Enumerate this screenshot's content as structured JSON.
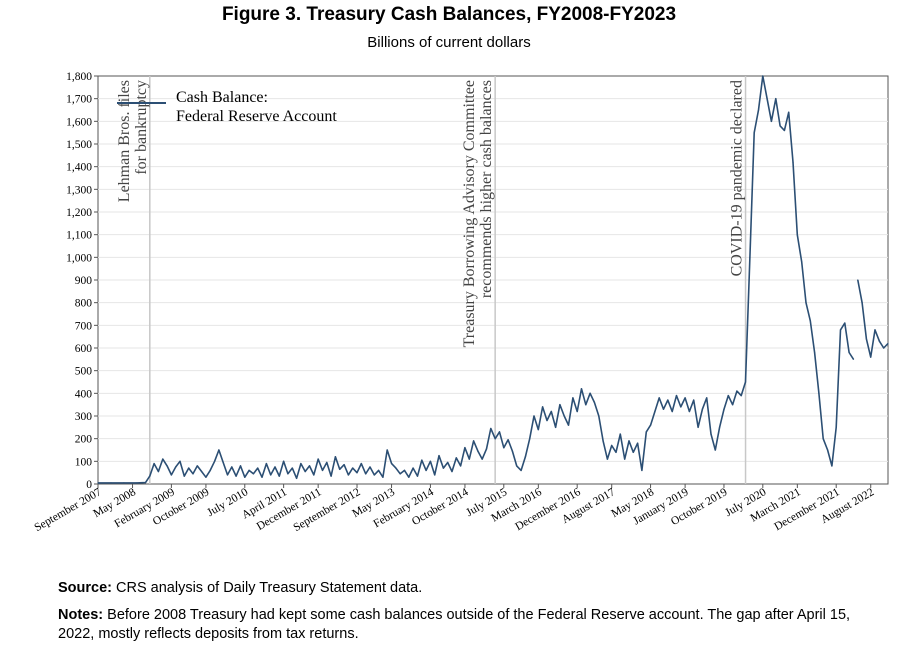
{
  "figure": {
    "title": "Figure 3. Treasury Cash Balances, FY2008-FY2023",
    "subtitle": "Billions of current dollars"
  },
  "footer": {
    "source_label": "Source:",
    "source_text": "CRS analysis of Daily Treasury Statement data.",
    "notes_label": "Notes:",
    "notes_text": "Before 2008 Treasury had kept some cash balances outside of the Federal Reserve account. The gap after April 15, 2022, mostly reflects deposits from tax returns."
  },
  "colors": {
    "series": "#2c4f74",
    "annotation_line": "#c8c8c8",
    "grid": "#e6e6e6",
    "axis": "#555555"
  },
  "chart_data": {
    "type": "line",
    "xlabel": "",
    "ylabel": "",
    "ylim": [
      0,
      1800
    ],
    "xlim": [
      "2007-09",
      "2022-12"
    ],
    "grid": "horizontal",
    "legend": "top-left",
    "y_ticks": [
      "0",
      "100",
      "200",
      "300",
      "400",
      "500",
      "600",
      "700",
      "800",
      "900",
      "1,000",
      "1,100",
      "1,200",
      "1,300",
      "1,400",
      "1,500",
      "1,600",
      "1,700",
      "1,800"
    ],
    "x_ticks": [
      {
        "date": "2007-09",
        "label": "September 2007"
      },
      {
        "date": "2008-05",
        "label": "May 2008"
      },
      {
        "date": "2009-02",
        "label": "February 2009"
      },
      {
        "date": "2009-10",
        "label": "October 2009"
      },
      {
        "date": "2010-07",
        "label": "July 2010"
      },
      {
        "date": "2011-04",
        "label": "April 2011"
      },
      {
        "date": "2011-12",
        "label": "December 2011"
      },
      {
        "date": "2012-09",
        "label": "September 2012"
      },
      {
        "date": "2013-05",
        "label": "May 2013"
      },
      {
        "date": "2014-02",
        "label": "February 2014"
      },
      {
        "date": "2014-10",
        "label": "October 2014"
      },
      {
        "date": "2015-07",
        "label": "July 2015"
      },
      {
        "date": "2016-03",
        "label": "March 2016"
      },
      {
        "date": "2016-12",
        "label": "December 2016"
      },
      {
        "date": "2017-08",
        "label": "August 2017"
      },
      {
        "date": "2018-05",
        "label": "May 2018"
      },
      {
        "date": "2019-01",
        "label": "January 2019"
      },
      {
        "date": "2019-10",
        "label": "October 2019"
      },
      {
        "date": "2020-07",
        "label": "July 2020"
      },
      {
        "date": "2021-03",
        "label": "March 2021"
      },
      {
        "date": "2021-12",
        "label": "December 2021"
      },
      {
        "date": "2022-08",
        "label": "August 2022"
      }
    ],
    "annotations": [
      {
        "date": "2008-09",
        "lines": [
          "Lehman Bros. files",
          "for bankruptcy"
        ]
      },
      {
        "date": "2015-05",
        "lines": [
          "Treasury Borrowing Advisory Committee",
          "recommends higher cash balances"
        ]
      },
      {
        "date": "2020-03",
        "lines": [
          "COVID-19 pandemic declared"
        ]
      }
    ],
    "series": [
      {
        "name": "Cash Balance:\nFederal Reserve Account",
        "segments": [
          [
            [
              "2007-09",
              5
            ],
            [
              "2007-12",
              5
            ],
            [
              "2008-03",
              5
            ],
            [
              "2008-06",
              5
            ],
            [
              "2008-08",
              6
            ],
            [
              "2008-09",
              35
            ],
            [
              "2008-10",
              90
            ],
            [
              "2008-11",
              55
            ],
            [
              "2008-12",
              110
            ],
            [
              "2009-01",
              80
            ],
            [
              "2009-02",
              40
            ],
            [
              "2009-03",
              75
            ],
            [
              "2009-04",
              100
            ],
            [
              "2009-05",
              35
            ],
            [
              "2009-06",
              70
            ],
            [
              "2009-07",
              45
            ],
            [
              "2009-08",
              80
            ],
            [
              "2009-09",
              55
            ],
            [
              "2009-10",
              30
            ],
            [
              "2009-11",
              60
            ],
            [
              "2009-12",
              100
            ],
            [
              "2010-01",
              150
            ],
            [
              "2010-02",
              95
            ],
            [
              "2010-03",
              40
            ],
            [
              "2010-04",
              75
            ],
            [
              "2010-05",
              35
            ],
            [
              "2010-06",
              80
            ],
            [
              "2010-07",
              30
            ],
            [
              "2010-08",
              60
            ],
            [
              "2010-09",
              45
            ],
            [
              "2010-10",
              70
            ],
            [
              "2010-11",
              30
            ],
            [
              "2010-12",
              90
            ],
            [
              "2011-01",
              40
            ],
            [
              "2011-02",
              75
            ],
            [
              "2011-03",
              35
            ],
            [
              "2011-04",
              100
            ],
            [
              "2011-05",
              45
            ],
            [
              "2011-06",
              70
            ],
            [
              "2011-07",
              25
            ],
            [
              "2011-08",
              90
            ],
            [
              "2011-09",
              55
            ],
            [
              "2011-10",
              80
            ],
            [
              "2011-11",
              40
            ],
            [
              "2011-12",
              110
            ],
            [
              "2012-01",
              60
            ],
            [
              "2012-02",
              95
            ],
            [
              "2012-03",
              35
            ],
            [
              "2012-04",
              120
            ],
            [
              "2012-05",
              65
            ],
            [
              "2012-06",
              85
            ],
            [
              "2012-07",
              40
            ],
            [
              "2012-08",
              70
            ],
            [
              "2012-09",
              50
            ],
            [
              "2012-10",
              90
            ],
            [
              "2012-11",
              45
            ],
            [
              "2012-12",
              75
            ],
            [
              "2013-01",
              40
            ],
            [
              "2013-02",
              60
            ],
            [
              "2013-03",
              30
            ],
            [
              "2013-04",
              150
            ],
            [
              "2013-05",
              90
            ],
            [
              "2013-06",
              70
            ],
            [
              "2013-07",
              45
            ],
            [
              "2013-08",
              60
            ],
            [
              "2013-09",
              30
            ],
            [
              "2013-10",
              70
            ],
            [
              "2013-11",
              35
            ],
            [
              "2013-12",
              105
            ],
            [
              "2014-01",
              60
            ],
            [
              "2014-02",
              100
            ],
            [
              "2014-03",
              40
            ],
            [
              "2014-04",
              125
            ],
            [
              "2014-05",
              70
            ],
            [
              "2014-06",
              95
            ],
            [
              "2014-07",
              55
            ],
            [
              "2014-08",
              115
            ],
            [
              "2014-09",
              80
            ],
            [
              "2014-10",
              160
            ],
            [
              "2014-11",
              110
            ],
            [
              "2014-12",
              190
            ],
            [
              "2015-01",
              145
            ],
            [
              "2015-02",
              110
            ],
            [
              "2015-03",
              155
            ],
            [
              "2015-04",
              245
            ],
            [
              "2015-05",
              200
            ],
            [
              "2015-06",
              230
            ],
            [
              "2015-07",
              160
            ],
            [
              "2015-08",
              195
            ],
            [
              "2015-09",
              145
            ],
            [
              "2015-10",
              80
            ],
            [
              "2015-11",
              60
            ],
            [
              "2015-12",
              120
            ],
            [
              "2016-01",
              200
            ],
            [
              "2016-02",
              300
            ],
            [
              "2016-03",
              240
            ],
            [
              "2016-04",
              340
            ],
            [
              "2016-05",
              280
            ],
            [
              "2016-06",
              320
            ],
            [
              "2016-07",
              250
            ],
            [
              "2016-08",
              350
            ],
            [
              "2016-09",
              300
            ],
            [
              "2016-10",
              260
            ],
            [
              "2016-11",
              380
            ],
            [
              "2016-12",
              320
            ],
            [
              "2017-01",
              420
            ],
            [
              "2017-02",
              350
            ],
            [
              "2017-03",
              400
            ],
            [
              "2017-04",
              360
            ],
            [
              "2017-05",
              300
            ],
            [
              "2017-06",
              190
            ],
            [
              "2017-07",
              110
            ],
            [
              "2017-08",
              170
            ],
            [
              "2017-09",
              140
            ],
            [
              "2017-10",
              220
            ],
            [
              "2017-11",
              110
            ],
            [
              "2017-12",
              190
            ],
            [
              "2018-01",
              140
            ],
            [
              "2018-02",
              180
            ],
            [
              "2018-03",
              60
            ],
            [
              "2018-04",
              230
            ],
            [
              "2018-05",
              260
            ],
            [
              "2018-06",
              320
            ],
            [
              "2018-07",
              380
            ],
            [
              "2018-08",
              330
            ],
            [
              "2018-09",
              370
            ],
            [
              "2018-10",
              320
            ],
            [
              "2018-11",
              390
            ],
            [
              "2018-12",
              340
            ],
            [
              "2019-01",
              380
            ],
            [
              "2019-02",
              320
            ],
            [
              "2019-03",
              370
            ],
            [
              "2019-04",
              250
            ],
            [
              "2019-05",
              330
            ],
            [
              "2019-06",
              380
            ],
            [
              "2019-07",
              220
            ],
            [
              "2019-08",
              150
            ],
            [
              "2019-09",
              250
            ],
            [
              "2019-10",
              330
            ],
            [
              "2019-11",
              390
            ],
            [
              "2019-12",
              350
            ],
            [
              "2020-01",
              410
            ],
            [
              "2020-02",
              390
            ],
            [
              "2020-03",
              450
            ],
            [
              "2020-04",
              1000
            ],
            [
              "2020-05",
              1550
            ],
            [
              "2020-06",
              1650
            ],
            [
              "2020-07",
              1800
            ],
            [
              "2020-08",
              1700
            ],
            [
              "2020-09",
              1600
            ],
            [
              "2020-10",
              1700
            ],
            [
              "2020-11",
              1580
            ],
            [
              "2020-12",
              1560
            ],
            [
              "2021-01",
              1640
            ],
            [
              "2021-02",
              1420
            ],
            [
              "2021-03",
              1100
            ],
            [
              "2021-04",
              980
            ],
            [
              "2021-05",
              800
            ],
            [
              "2021-06",
              720
            ],
            [
              "2021-07",
              580
            ],
            [
              "2021-08",
              400
            ],
            [
              "2021-09",
              200
            ],
            [
              "2021-10",
              150
            ],
            [
              "2021-11",
              80
            ],
            [
              "2021-12",
              250
            ],
            [
              "2022-01",
              680
            ],
            [
              "2022-02",
              710
            ],
            [
              "2022-03",
              580
            ],
            [
              "2022-04",
              550
            ]
          ],
          [
            [
              "2022-05",
              900
            ],
            [
              "2022-06",
              800
            ],
            [
              "2022-07",
              640
            ],
            [
              "2022-08",
              560
            ],
            [
              "2022-09",
              680
            ],
            [
              "2022-10",
              630
            ],
            [
              "2022-11",
              600
            ],
            [
              "2022-12",
              620
            ]
          ]
        ]
      }
    ]
  }
}
